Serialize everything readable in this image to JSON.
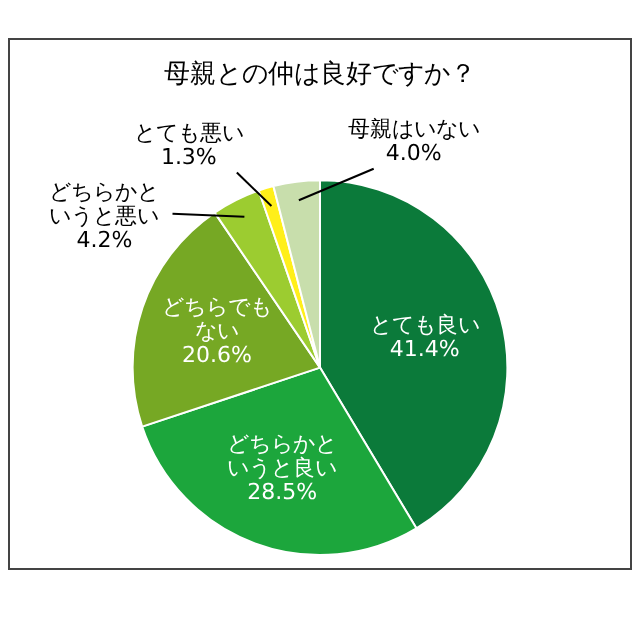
{
  "chart_data": {
    "type": "pie",
    "title": "母親との仲は良好ですか？",
    "categories": [
      "とても良い",
      "どちらかというと良い",
      "どちらでもない",
      "どちらかというと悪い",
      "とても悪い",
      "母親はいない"
    ],
    "values": [
      41.4,
      28.5,
      20.6,
      4.2,
      1.3,
      4.0
    ],
    "value_labels": [
      "41.4%",
      "28.5%",
      "20.6%",
      "4.2%",
      "1.3%",
      "4.0%"
    ],
    "colors": [
      "#0b7a3a",
      "#1ca63c",
      "#76a824",
      "#9ccc30",
      "#ffef1a",
      "#c8deac"
    ],
    "legend": false
  }
}
